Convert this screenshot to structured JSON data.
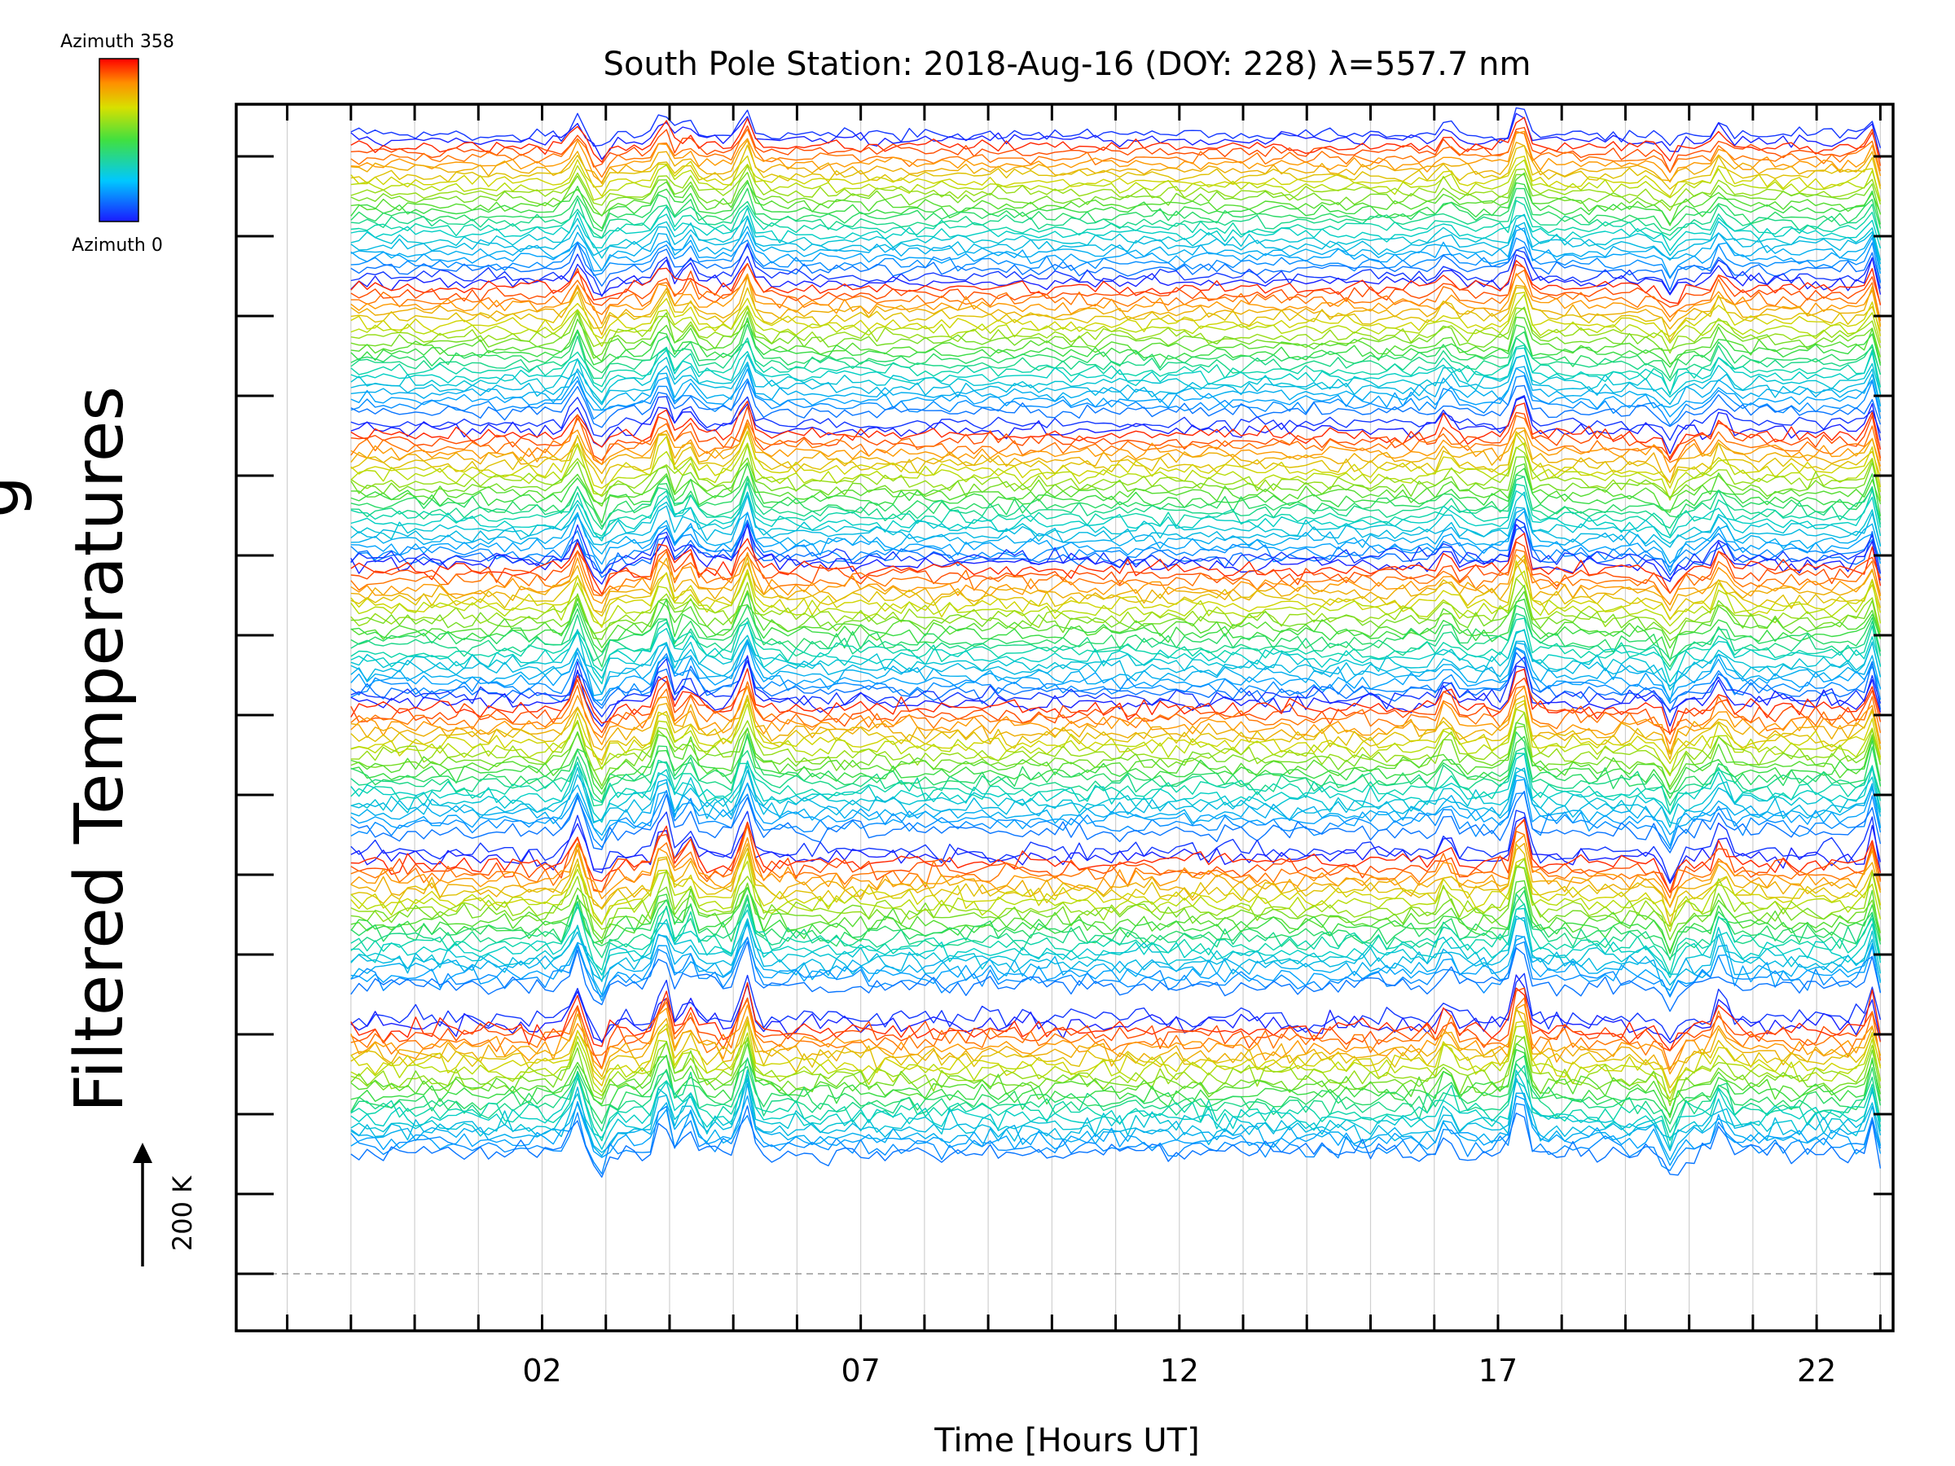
{
  "chart_data": {
    "type": "line",
    "title": "South Pole Station: 2018-Aug-16 (DOY: 228) λ=557.7 nm",
    "xlabel": "Time [Hours UT]",
    "ylabel": "Filtered Temperatures",
    "xlim": [
      -2.8,
      23.2
    ],
    "x_tick_labels": [
      "02",
      "07",
      "12",
      "17",
      "22"
    ],
    "x_tick_values": [
      2,
      7,
      12,
      17,
      22
    ],
    "x_minor_tick_values": [
      -2,
      -1,
      0,
      1,
      2,
      3,
      4,
      5,
      6,
      7,
      8,
      9,
      10,
      11,
      12,
      13,
      14,
      15,
      16,
      17,
      18,
      19,
      20,
      21,
      22,
      23
    ],
    "data_x_range": [
      -1.0,
      23.0
    ],
    "y_ticks_count": 15,
    "scale_bar": {
      "label": "200 K"
    },
    "colorbar": {
      "top_label": "Azimuth 358",
      "bottom_label": "Azimuth 0",
      "colormap": "rainbow"
    },
    "series_groups": 7,
    "series_per_group": 24,
    "note": "Stacked, offset filtered temperature traces; one trace per azimuth, colored by azimuth (0 blue → 358 red)."
  },
  "colors": {
    "axis": "#000000",
    "grid": "#d0d0d0",
    "baseline": "#999999",
    "background": "#ffffff"
  }
}
